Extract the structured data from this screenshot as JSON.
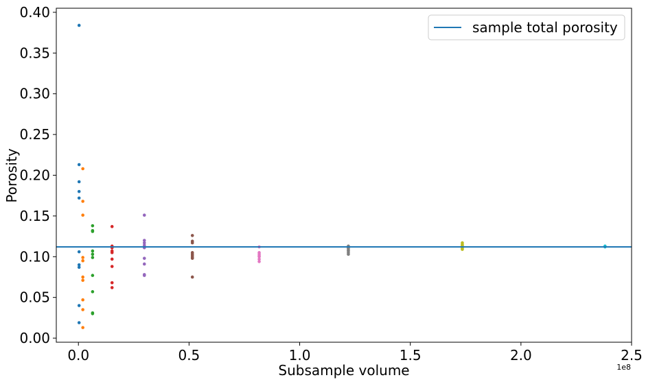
{
  "chart_data": {
    "type": "scatter",
    "xlabel": "Subsample volume",
    "ylabel": "Porosity",
    "x_offset_label": "1e8",
    "xlim": [
      -0.1,
      2.5
    ],
    "ylim": [
      -0.005,
      0.405
    ],
    "x_scale": 100000000,
    "x_ticks": [
      0.0,
      0.5,
      1.0,
      1.5,
      2.0,
      2.5
    ],
    "x_tick_labels": [
      "0.0",
      "0.5",
      "1.0",
      "1.5",
      "2.0",
      "2.5"
    ],
    "y_ticks": [
      0.0,
      0.05,
      0.1,
      0.15,
      0.2,
      0.25,
      0.3,
      0.35,
      0.4
    ],
    "y_tick_labels": [
      "0.00",
      "0.05",
      "0.10",
      "0.15",
      "0.20",
      "0.25",
      "0.30",
      "0.35",
      "0.40"
    ],
    "grid": false,
    "legend": {
      "position": "top-right",
      "entries": [
        "sample total porosity"
      ]
    },
    "reference_line": {
      "label": "sample total porosity",
      "y": 0.112,
      "color": "#1f77b4"
    },
    "series": [
      {
        "x": 0.003,
        "color": "#1f77b4",
        "values": [
          0.384,
          0.213,
          0.192,
          0.18,
          0.172,
          0.106,
          0.09,
          0.087,
          0.04,
          0.019
        ]
      },
      {
        "x": 0.02,
        "color": "#ff7f0e",
        "values": [
          0.208,
          0.168,
          0.151,
          0.099,
          0.095,
          0.075,
          0.071,
          0.047,
          0.035,
          0.013
        ]
      },
      {
        "x": 0.064,
        "color": "#2ca02c",
        "values": [
          0.138,
          0.132,
          0.131,
          0.107,
          0.103,
          0.099,
          0.077,
          0.057,
          0.031,
          0.03
        ]
      },
      {
        "x": 0.152,
        "color": "#d62728",
        "values": [
          0.137,
          0.113,
          0.111,
          0.107,
          0.105,
          0.097,
          0.088,
          0.068,
          0.062
        ]
      },
      {
        "x": 0.298,
        "color": "#9467bd",
        "values": [
          0.151,
          0.12,
          0.117,
          0.114,
          0.111,
          0.098,
          0.091,
          0.078,
          0.077
        ]
      },
      {
        "x": 0.515,
        "color": "#8c564b",
        "values": [
          0.126,
          0.119,
          0.117,
          0.105,
          0.103,
          0.101,
          0.099,
          0.098,
          0.075
        ]
      },
      {
        "x": 0.817,
        "color": "#e377c2",
        "values": [
          0.112,
          0.105,
          0.103,
          0.101,
          0.1,
          0.097,
          0.094
        ]
      },
      {
        "x": 1.22,
        "color": "#7f7f7f",
        "values": [
          0.113,
          0.111,
          0.11,
          0.108,
          0.107,
          0.105,
          0.103
        ]
      },
      {
        "x": 1.735,
        "color": "#bcbd22",
        "values": [
          0.117,
          0.115,
          0.114,
          0.113,
          0.112,
          0.111,
          0.11,
          0.109
        ]
      },
      {
        "x": 2.38,
        "color": "#17becf",
        "values": [
          0.113,
          0.112
        ]
      }
    ]
  }
}
